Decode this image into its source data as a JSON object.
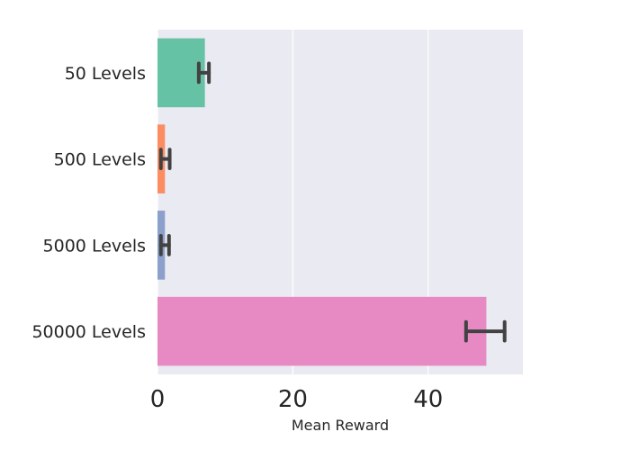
{
  "chart_data": {
    "type": "bar",
    "orientation": "horizontal",
    "categories": [
      "50 Levels",
      "500 Levels",
      "5000 Levels",
      "50000 Levels"
    ],
    "values": [
      7.0,
      1.1,
      1.1,
      48.6
    ],
    "error_low": [
      6.1,
      0.5,
      0.5,
      45.6
    ],
    "error_high": [
      7.6,
      1.8,
      1.7,
      51.3
    ],
    "colors": [
      "#66c2a5",
      "#fc8d62",
      "#8da0cb",
      "#e78ac3"
    ],
    "xlabel": "Mean Reward",
    "ylabel": "",
    "xlim": [
      0,
      54
    ],
    "xticks": [
      0,
      20,
      40
    ],
    "grid": true,
    "background": "#eaeaf2"
  }
}
